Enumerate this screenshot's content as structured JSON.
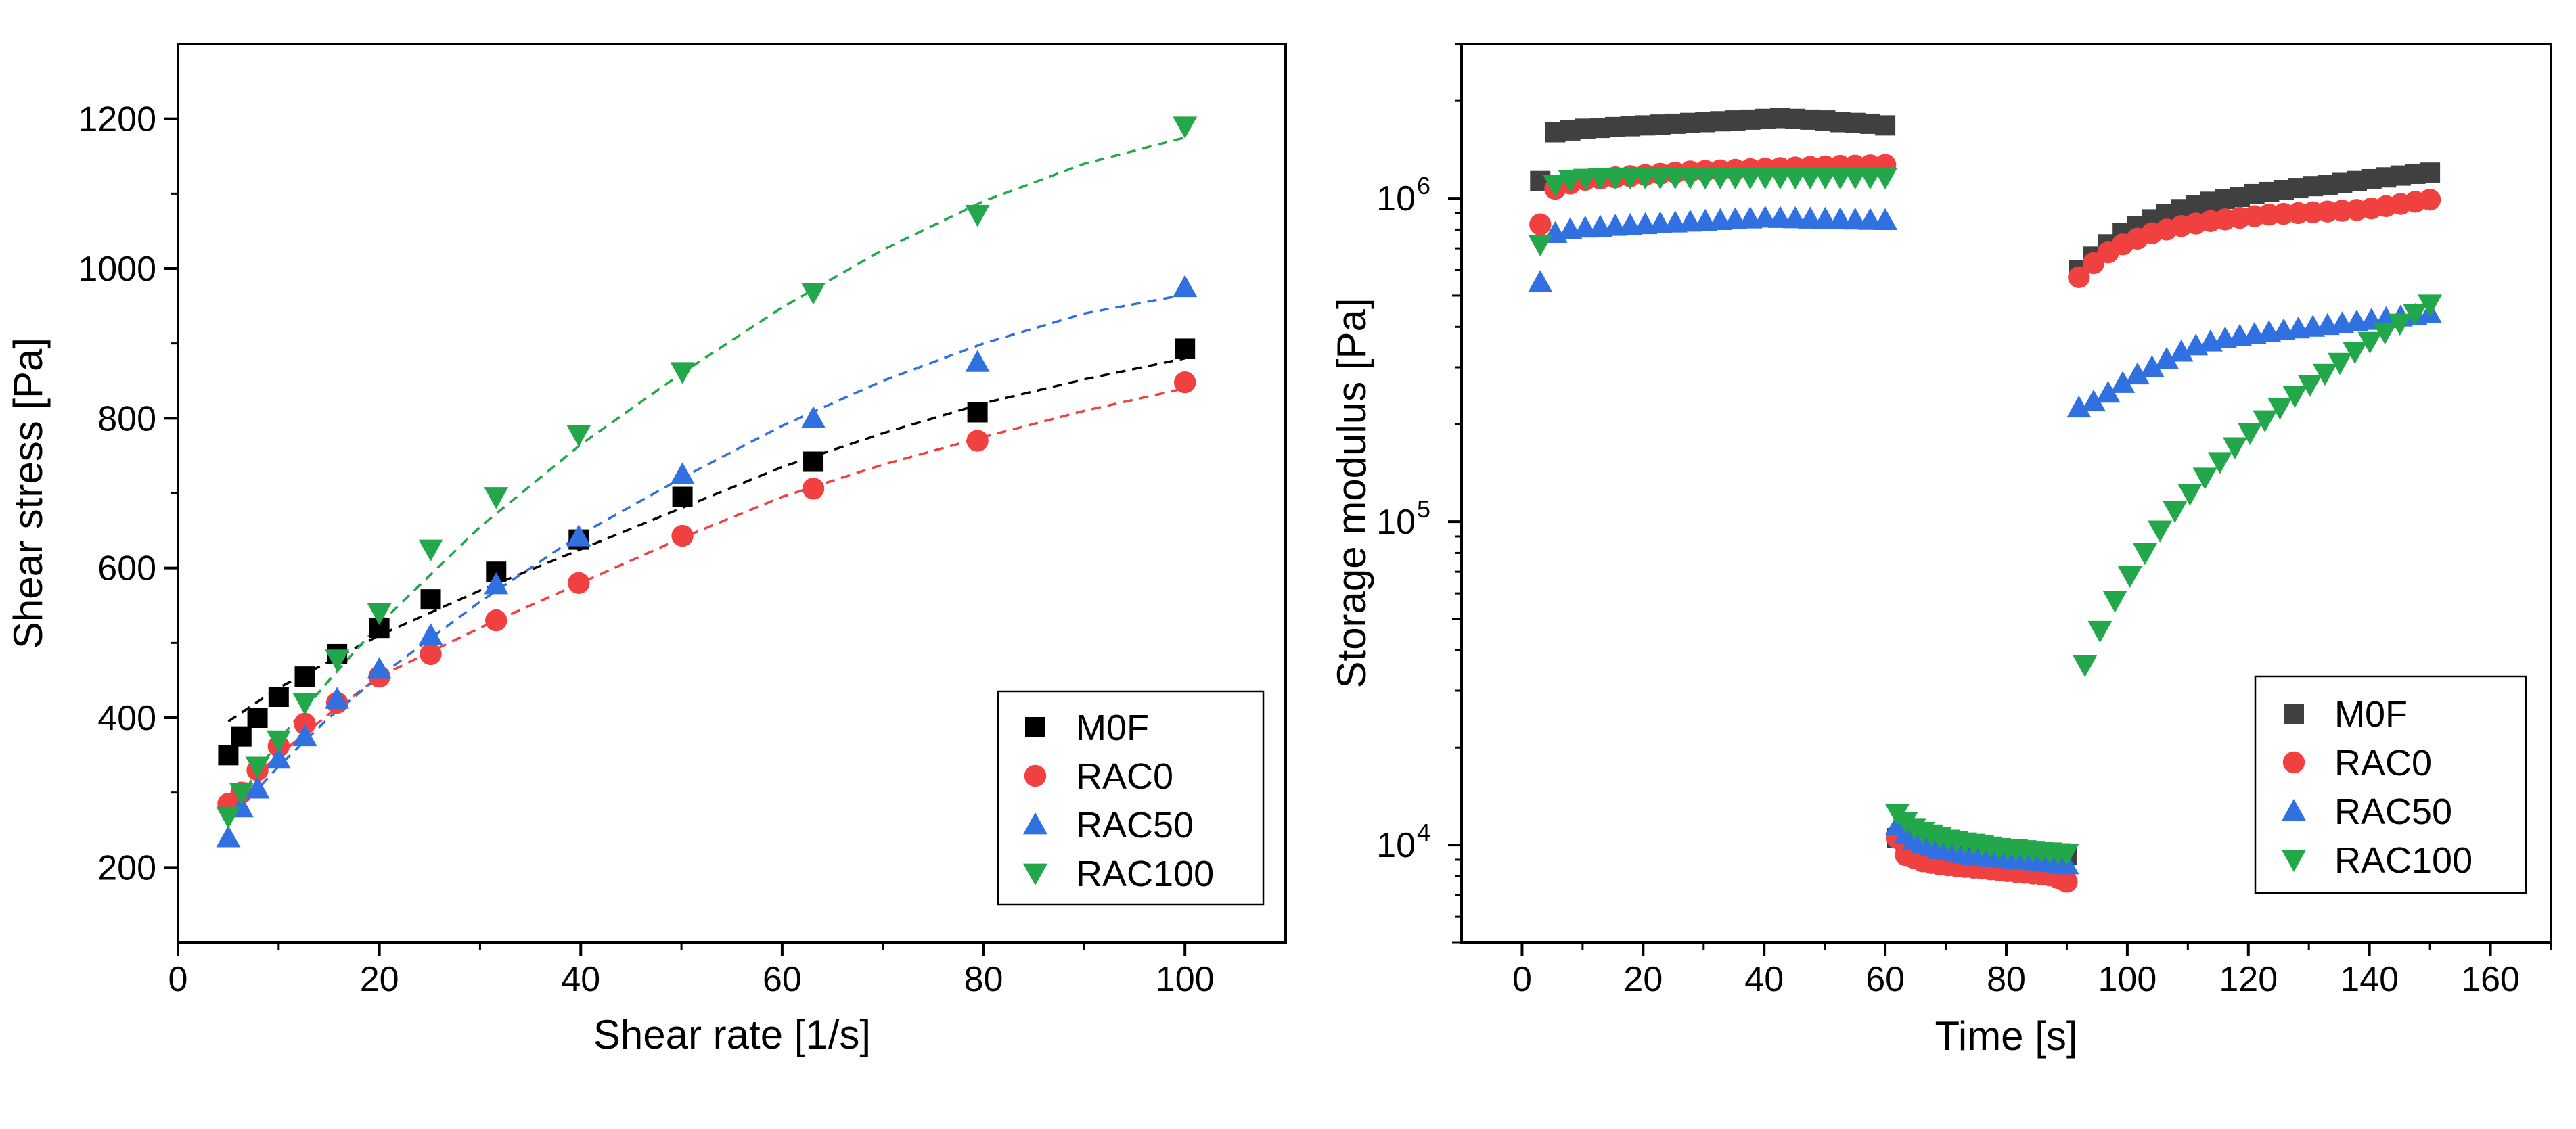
{
  "chart_data": [
    {
      "type": "scatter",
      "title": "",
      "xlabel": "Shear rate [1/s]",
      "ylabel": "Shear stress [Pa]",
      "xlim": [
        0,
        110
      ],
      "ylim": [
        100,
        1300
      ],
      "xticks": [
        0,
        20,
        40,
        60,
        80,
        100
      ],
      "yticks": [
        200,
        400,
        600,
        800,
        1000,
        1200
      ],
      "xtick_labels": [
        "0",
        "20",
        "40",
        "60",
        "80",
        "100"
      ],
      "ytick_labels": [
        "200",
        "400",
        "600",
        "800",
        "1000",
        "1200"
      ],
      "legend_position": "bottom-right",
      "fit_lines": "dashed",
      "series": [
        {
          "name": "M0F",
          "color": "#000000",
          "marker": "square",
          "x": [
            5,
            6.3,
            7.9,
            10,
            12.6,
            15.8,
            20,
            25.1,
            31.6,
            39.8,
            50.1,
            63.1,
            79.4,
            100
          ],
          "y": [
            350,
            375,
            400,
            428,
            455,
            485,
            520,
            558,
            595,
            638,
            695,
            742,
            808,
            893
          ],
          "fit_x": [
            5,
            10,
            15,
            20,
            30,
            40,
            50,
            60,
            70,
            80,
            90,
            100
          ],
          "fit_y": [
            395,
            440,
            475,
            510,
            570,
            625,
            680,
            735,
            780,
            820,
            852,
            880
          ]
        },
        {
          "name": "RAC0",
          "color": "#f04040",
          "marker": "circle",
          "x": [
            5,
            6.3,
            7.9,
            10,
            12.6,
            15.8,
            20,
            25.1,
            31.6,
            39.8,
            50.1,
            63.1,
            79.4,
            100
          ],
          "y": [
            285,
            300,
            330,
            362,
            392,
            420,
            455,
            485,
            530,
            580,
            643,
            706,
            770,
            848
          ],
          "fit_x": [
            5,
            10,
            15,
            20,
            30,
            40,
            50,
            60,
            70,
            80,
            90,
            100
          ],
          "fit_y": [
            290,
            350,
            405,
            455,
            520,
            580,
            640,
            695,
            738,
            775,
            810,
            840
          ]
        },
        {
          "name": "RAC50",
          "color": "#3070e0",
          "marker": "triangle-up",
          "x": [
            5,
            6.3,
            7.9,
            10,
            12.6,
            15.8,
            20,
            25.1,
            31.6,
            39.8,
            50.1,
            63.1,
            79.4,
            100
          ],
          "y": [
            240,
            280,
            305,
            345,
            375,
            425,
            465,
            510,
            578,
            642,
            725,
            800,
            875,
            975
          ],
          "fit_x": [
            5,
            10,
            15,
            20,
            30,
            40,
            50,
            60,
            70,
            80,
            90,
            100
          ],
          "fit_y": [
            262,
            335,
            400,
            455,
            555,
            645,
            720,
            790,
            850,
            900,
            940,
            965
          ]
        },
        {
          "name": "RAC100",
          "color": "#22a84a",
          "marker": "triangle-down",
          "x": [
            5,
            6.3,
            7.9,
            10,
            12.6,
            15.8,
            20,
            25.1,
            31.6,
            39.8,
            50.1,
            63.1,
            79.4,
            100
          ],
          "y": [
            268,
            300,
            335,
            370,
            420,
            478,
            540,
            625,
            695,
            778,
            862,
            968,
            1072,
            1190
          ],
          "fit_x": [
            5,
            10,
            15,
            20,
            30,
            40,
            50,
            60,
            70,
            80,
            90,
            100
          ],
          "fit_y": [
            270,
            370,
            450,
            525,
            655,
            765,
            860,
            948,
            1025,
            1090,
            1140,
            1175
          ]
        }
      ]
    },
    {
      "type": "scatter",
      "title": "",
      "xlabel": "Time [s]",
      "ylabel": "Storage modulus [Pa]",
      "xlim": [
        -10,
        170
      ],
      "ylim": [
        5000,
        3000000
      ],
      "yscale": "log",
      "xticks": [
        0,
        20,
        40,
        60,
        80,
        100,
        120,
        140,
        160
      ],
      "xtick_labels": [
        "0",
        "20",
        "40",
        "60",
        "80",
        "100",
        "120",
        "140",
        "160"
      ],
      "yticks": [
        10000,
        100000,
        1000000
      ],
      "ytick_base": "10",
      "ytick_exponents": [
        "4",
        "5",
        "6"
      ],
      "legend_position": "bottom-right",
      "series": [
        {
          "name": "M0F",
          "color": "#404040",
          "marker": "square",
          "segments": [
            {
              "t0": 3,
              "t1": 60,
              "v": [
                1130000,
                1600000,
                1620000,
                1640000,
                1650000,
                1660000,
                1670000,
                1680000,
                1690000,
                1700000,
                1710000,
                1720000,
                1730000,
                1740000,
                1750000,
                1760000,
                1770000,
                1760000,
                1750000,
                1740000,
                1720000,
                1710000,
                1700000,
                1680000
              ]
            },
            {
              "t0": 62,
              "t1": 90,
              "v": [
                10500,
                10200,
                10000,
                9900,
                9800,
                9750,
                9700,
                9650,
                9600,
                9580,
                9550,
                9530,
                9510,
                9500,
                9490,
                9480,
                9470,
                9460,
                9450,
                9400,
                9300
              ]
            },
            {
              "t0": 92,
              "t1": 150,
              "v": [
                600000,
                660000,
                720000,
                780000,
                820000,
                860000,
                895000,
                925000,
                950000,
                975000,
                995000,
                1010000,
                1030000,
                1045000,
                1060000,
                1075000,
                1090000,
                1100000,
                1115000,
                1130000,
                1145000,
                1160000,
                1175000,
                1190000,
                1200000
              ]
            }
          ]
        },
        {
          "name": "RAC0",
          "color": "#f04040",
          "marker": "circle",
          "segments": [
            {
              "t0": 3,
              "t1": 60,
              "v": [
                830000,
                1070000,
                1110000,
                1140000,
                1150000,
                1160000,
                1170000,
                1180000,
                1190000,
                1200000,
                1210000,
                1215000,
                1220000,
                1225000,
                1230000,
                1235000,
                1240000,
                1245000,
                1250000,
                1255000,
                1260000,
                1262000,
                1265000,
                1268000
              ]
            },
            {
              "t0": 62,
              "t1": 90,
              "v": [
                10500,
                9300,
                9100,
                8900,
                8800,
                8700,
                8650,
                8600,
                8550,
                8500,
                8450,
                8400,
                8350,
                8300,
                8250,
                8200,
                8150,
                8100,
                8050,
                7900,
                7700
              ]
            },
            {
              "t0": 92,
              "t1": 150,
              "v": [
                570000,
                630000,
                680000,
                720000,
                750000,
                780000,
                800000,
                820000,
                835000,
                850000,
                860000,
                870000,
                880000,
                890000,
                895000,
                900000,
                905000,
                910000,
                915000,
                920000,
                930000,
                945000,
                960000,
                975000,
                990000
              ]
            }
          ]
        },
        {
          "name": "RAC50",
          "color": "#3070e0",
          "marker": "triangle-up",
          "segments": [
            {
              "t0": 3,
              "t1": 60,
              "v": [
                550000,
                780000,
                800000,
                810000,
                815000,
                820000,
                825000,
                830000,
                835000,
                840000,
                845000,
                850000,
                855000,
                860000,
                865000,
                870000,
                868000,
                866000,
                864000,
                862000,
                860000,
                858000,
                856000,
                855000
              ]
            },
            {
              "t0": 62,
              "t1": 90,
              "v": [
                11500,
                10800,
                10400,
                10100,
                9900,
                9700,
                9600,
                9500,
                9400,
                9300,
                9250,
                9200,
                9150,
                9100,
                9050,
                9000,
                8950,
                8900,
                8850,
                8800,
                8700
              ]
            },
            {
              "t0": 92,
              "t1": 150,
              "v": [
                225000,
                235000,
                250000,
                268000,
                285000,
                300000,
                318000,
                335000,
                350000,
                360000,
                368000,
                375000,
                380000,
                385000,
                390000,
                395000,
                400000,
                405000,
                410000,
                415000,
                420000,
                425000,
                430000,
                435000,
                440000
              ]
            }
          ]
        },
        {
          "name": "RAC100",
          "color": "#22a84a",
          "marker": "triangle-down",
          "segments": [
            {
              "t0": 3,
              "t1": 60,
              "v": [
                720000,
                1100000,
                1140000,
                1150000,
                1155000,
                1160000,
                1160000,
                1160000,
                1160000,
                1160000,
                1160000,
                1160000,
                1160000,
                1160000,
                1160000,
                1160000,
                1160000,
                1160000,
                1160000,
                1160000,
                1160000,
                1160000,
                1160000,
                1160000
              ]
            },
            {
              "t0": 62,
              "t1": 90,
              "v": [
                12500,
                11800,
                11300,
                11000,
                10800,
                10600,
                10400,
                10300,
                10200,
                10100,
                10000,
                9900,
                9800,
                9750,
                9700,
                9650,
                9600,
                9550,
                9500,
                9450,
                9400
              ]
            },
            {
              "t0": 93,
              "t1": 150,
              "v": [
                36000,
                46000,
                57000,
                68000,
                80000,
                94000,
                108000,
                122000,
                137000,
                153000,
                170000,
                188000,
                206000,
                225000,
                245000,
                265000,
                287000,
                310000,
                335000,
                360000,
                385000,
                410000,
                440000,
                470000
              ]
            }
          ]
        }
      ]
    }
  ]
}
